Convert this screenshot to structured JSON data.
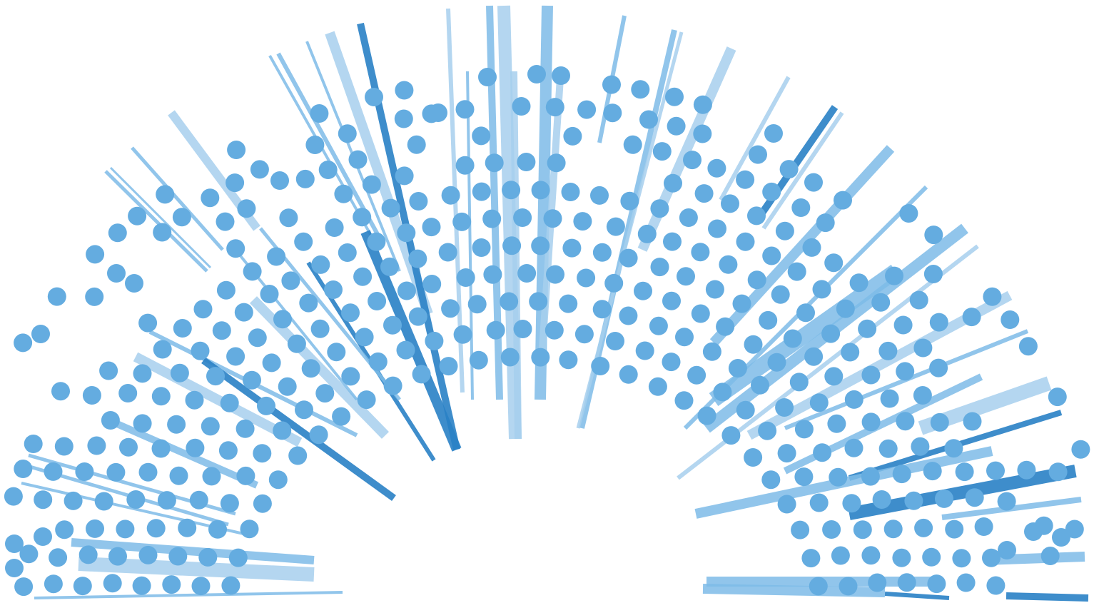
{
  "artwork": {
    "description_free": true,
    "colors": {
      "background": "#ffffff",
      "dot": "#64ace0",
      "ray_light": "#a7d0ee",
      "ray_mid": "#7ebce8",
      "ray_dark": "#2a81c6"
    }
  }
}
